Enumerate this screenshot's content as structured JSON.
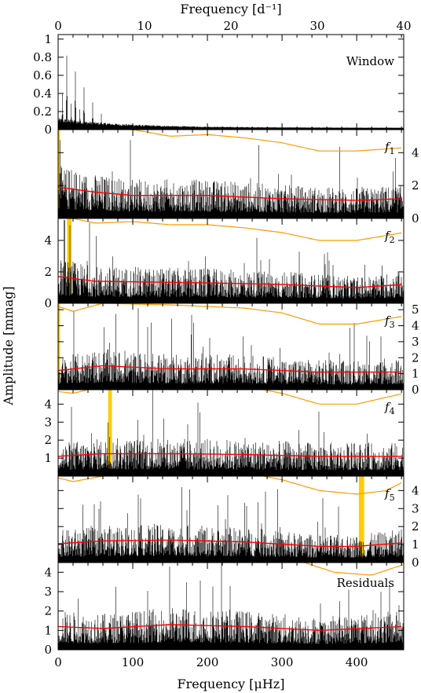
{
  "chart_data": {
    "type": "line",
    "top_axis": {
      "label": "Frequency [d⁻¹]",
      "ticks": [
        0,
        10,
        20,
        30,
        40
      ],
      "range": [
        0,
        40
      ]
    },
    "bottom_axis": {
      "label": "Frequency [μHz]",
      "ticks": [
        0,
        100,
        200,
        300,
        400
      ],
      "range": [
        0,
        463
      ]
    },
    "ylabel": "Amplitude [mmag]",
    "colors": {
      "spectrum": "#000000",
      "noise": "#ff0000",
      "threshold": "#ff9900",
      "highlight": "#ffcc00"
    },
    "panels": [
      {
        "label": "Window",
        "ylim": [
          0,
          1.05
        ],
        "yticks": [
          0,
          0.2,
          0.4,
          0.6,
          0.8,
          1
        ],
        "tick_side": "left",
        "peaks": [
          [
            11.6,
            0.84
          ],
          [
            23.1,
            0.68
          ],
          [
            34.7,
            0.48
          ],
          [
            46.3,
            0.3
          ],
          [
            57.9,
            0.18
          ],
          [
            5.8,
            0.4
          ],
          [
            17.4,
            0.3
          ],
          [
            29,
            0.24
          ]
        ]
      },
      {
        "label": "f1",
        "ylim": [
          0,
          5.4
        ],
        "yticks": [
          0,
          2,
          4
        ],
        "tick_side": "right",
        "highlight": [
          0,
          2.5
        ],
        "noise": [
          [
            0,
            1.9
          ],
          [
            50,
            1.6
          ],
          [
            100,
            1.4
          ],
          [
            200,
            1.4
          ],
          [
            300,
            1.2
          ],
          [
            400,
            1.1
          ],
          [
            463,
            1.2
          ]
        ],
        "threshold": [
          [
            0,
            5.5
          ],
          [
            100,
            5.4
          ],
          [
            150,
            5.0
          ],
          [
            200,
            5.1
          ],
          [
            250,
            4.9
          ],
          [
            300,
            4.6
          ],
          [
            350,
            4.1
          ],
          [
            400,
            4.1
          ],
          [
            463,
            4.3
          ]
        ]
      },
      {
        "label": "f2",
        "ylim": [
          0,
          5.4
        ],
        "yticks": [
          0,
          2,
          4
        ],
        "tick_side": "left",
        "highlight": [
          12,
          18
        ],
        "noise": [
          [
            0,
            1.7
          ],
          [
            50,
            1.4
          ],
          [
            200,
            1.3
          ],
          [
            300,
            1.2
          ],
          [
            400,
            1.0
          ],
          [
            463,
            1.2
          ]
        ],
        "threshold": [
          [
            0,
            5.6
          ],
          [
            50,
            5.1
          ],
          [
            100,
            5.2
          ],
          [
            150,
            5.0
          ],
          [
            200,
            5.0
          ],
          [
            250,
            4.8
          ],
          [
            300,
            4.5
          ],
          [
            350,
            4.0
          ],
          [
            400,
            4.0
          ],
          [
            463,
            4.5
          ]
        ]
      },
      {
        "label": "f3",
        "ylim": [
          0,
          5.4
        ],
        "yticks": [
          0,
          1,
          2,
          3,
          4,
          5
        ],
        "tick_side": "right",
        "highlight": [
          0,
          2.5
        ],
        "noise": [
          [
            0,
            1.2
          ],
          [
            60,
            1.5
          ],
          [
            150,
            1.3
          ],
          [
            250,
            1.3
          ],
          [
            350,
            1.1
          ],
          [
            463,
            1.1
          ]
        ],
        "threshold": [
          [
            0,
            5.2
          ],
          [
            20,
            4.9
          ],
          [
            60,
            5.4
          ],
          [
            150,
            5.3
          ],
          [
            250,
            5.1
          ],
          [
            300,
            4.8
          ],
          [
            350,
            4.1
          ],
          [
            400,
            4.1
          ],
          [
            463,
            4.6
          ]
        ]
      },
      {
        "label": "f4",
        "ylim": [
          0,
          4.8
        ],
        "yticks": [
          1,
          2,
          3,
          4
        ],
        "tick_side": "left",
        "highlight": [
          67,
          72
        ],
        "noise": [
          [
            0,
            1.1
          ],
          [
            60,
            1.25
          ],
          [
            150,
            1.25
          ],
          [
            250,
            1.2
          ],
          [
            350,
            1.1
          ],
          [
            463,
            1.1
          ]
        ],
        "threshold": [
          [
            0,
            4.7
          ],
          [
            20,
            4.6
          ],
          [
            60,
            5.0
          ],
          [
            150,
            5.2
          ],
          [
            250,
            5.0
          ],
          [
            300,
            4.6
          ],
          [
            350,
            4.0
          ],
          [
            400,
            4.0
          ],
          [
            463,
            4.6
          ]
        ]
      },
      {
        "label": "f5",
        "ylim": [
          0,
          4.8
        ],
        "yticks": [
          0,
          1,
          2,
          3,
          4
        ],
        "tick_side": "right",
        "highlight": [
          403,
          410
        ],
        "noise": [
          [
            0,
            1.05
          ],
          [
            60,
            1.2
          ],
          [
            150,
            1.25
          ],
          [
            250,
            1.15
          ],
          [
            350,
            0.9
          ],
          [
            400,
            0.9
          ],
          [
            463,
            1.1
          ]
        ],
        "threshold": [
          [
            0,
            4.7
          ],
          [
            20,
            4.5
          ],
          [
            60,
            4.8
          ],
          [
            150,
            5.2
          ],
          [
            250,
            5.0
          ],
          [
            300,
            4.6
          ],
          [
            350,
            4.0
          ],
          [
            400,
            3.8
          ],
          [
            440,
            4.0
          ],
          [
            463,
            4.5
          ]
        ]
      },
      {
        "label": "Residuals",
        "ylim": [
          0,
          4.5
        ],
        "yticks": [
          0,
          1,
          2,
          3,
          4
        ],
        "tick_side": "left",
        "noise": [
          [
            0,
            1.2
          ],
          [
            60,
            1.1
          ],
          [
            150,
            1.3
          ],
          [
            250,
            1.2
          ],
          [
            350,
            1.0
          ],
          [
            463,
            1.2
          ]
        ],
        "threshold": [
          [
            330,
            4.5
          ],
          [
            370,
            4.0
          ],
          [
            420,
            3.85
          ],
          [
            463,
            4.4
          ]
        ]
      }
    ]
  }
}
